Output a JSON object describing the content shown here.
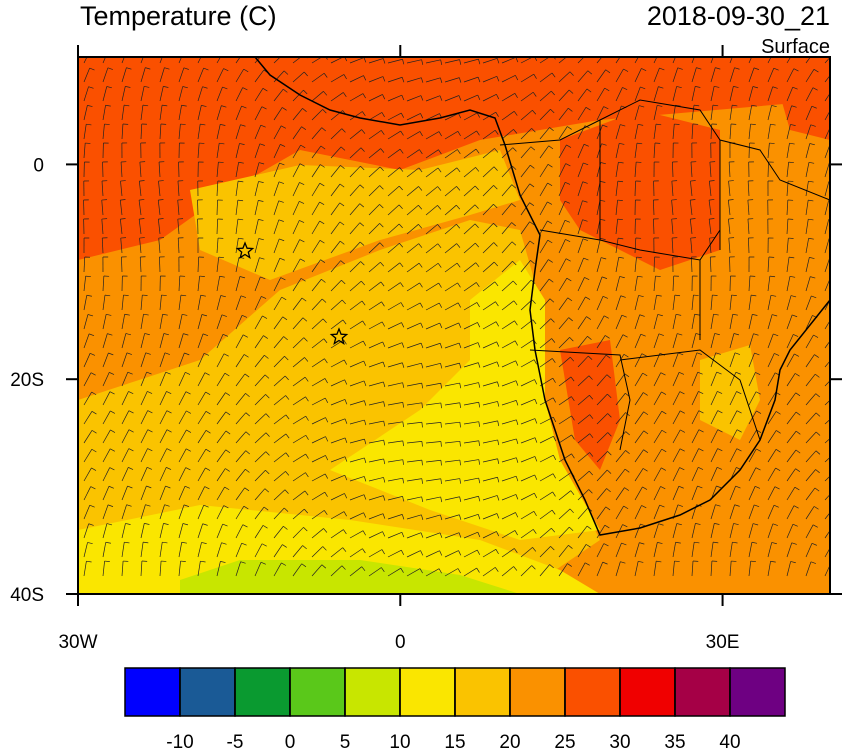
{
  "title": "Temperature (C)",
  "time": "2018-09-30_21",
  "level": "Surface",
  "map": {
    "lonlim": [
      -30,
      40
    ],
    "latlim": [
      -40,
      10
    ],
    "lon_ticks": [
      {
        "value": -30,
        "label": "30W"
      },
      {
        "value": 0,
        "label": "0"
      },
      {
        "value": 30,
        "label": "30E"
      }
    ],
    "lat_ticks": [
      {
        "value": 0,
        "label": "0"
      },
      {
        "value": -20,
        "label": "20S"
      },
      {
        "value": -40,
        "label": "40S"
      }
    ]
  },
  "colorbar": {
    "levels": [
      -10,
      -5,
      0,
      5,
      10,
      15,
      20,
      25,
      30,
      35,
      40
    ],
    "colors": [
      "#0000ff",
      "#1a5a96",
      "#0a9a30",
      "#5ac81a",
      "#c8e600",
      "#fae600",
      "#fac300",
      "#fa9100",
      "#fa5000",
      "#f00000",
      "#a50046",
      "#6e0082"
    ]
  }
}
